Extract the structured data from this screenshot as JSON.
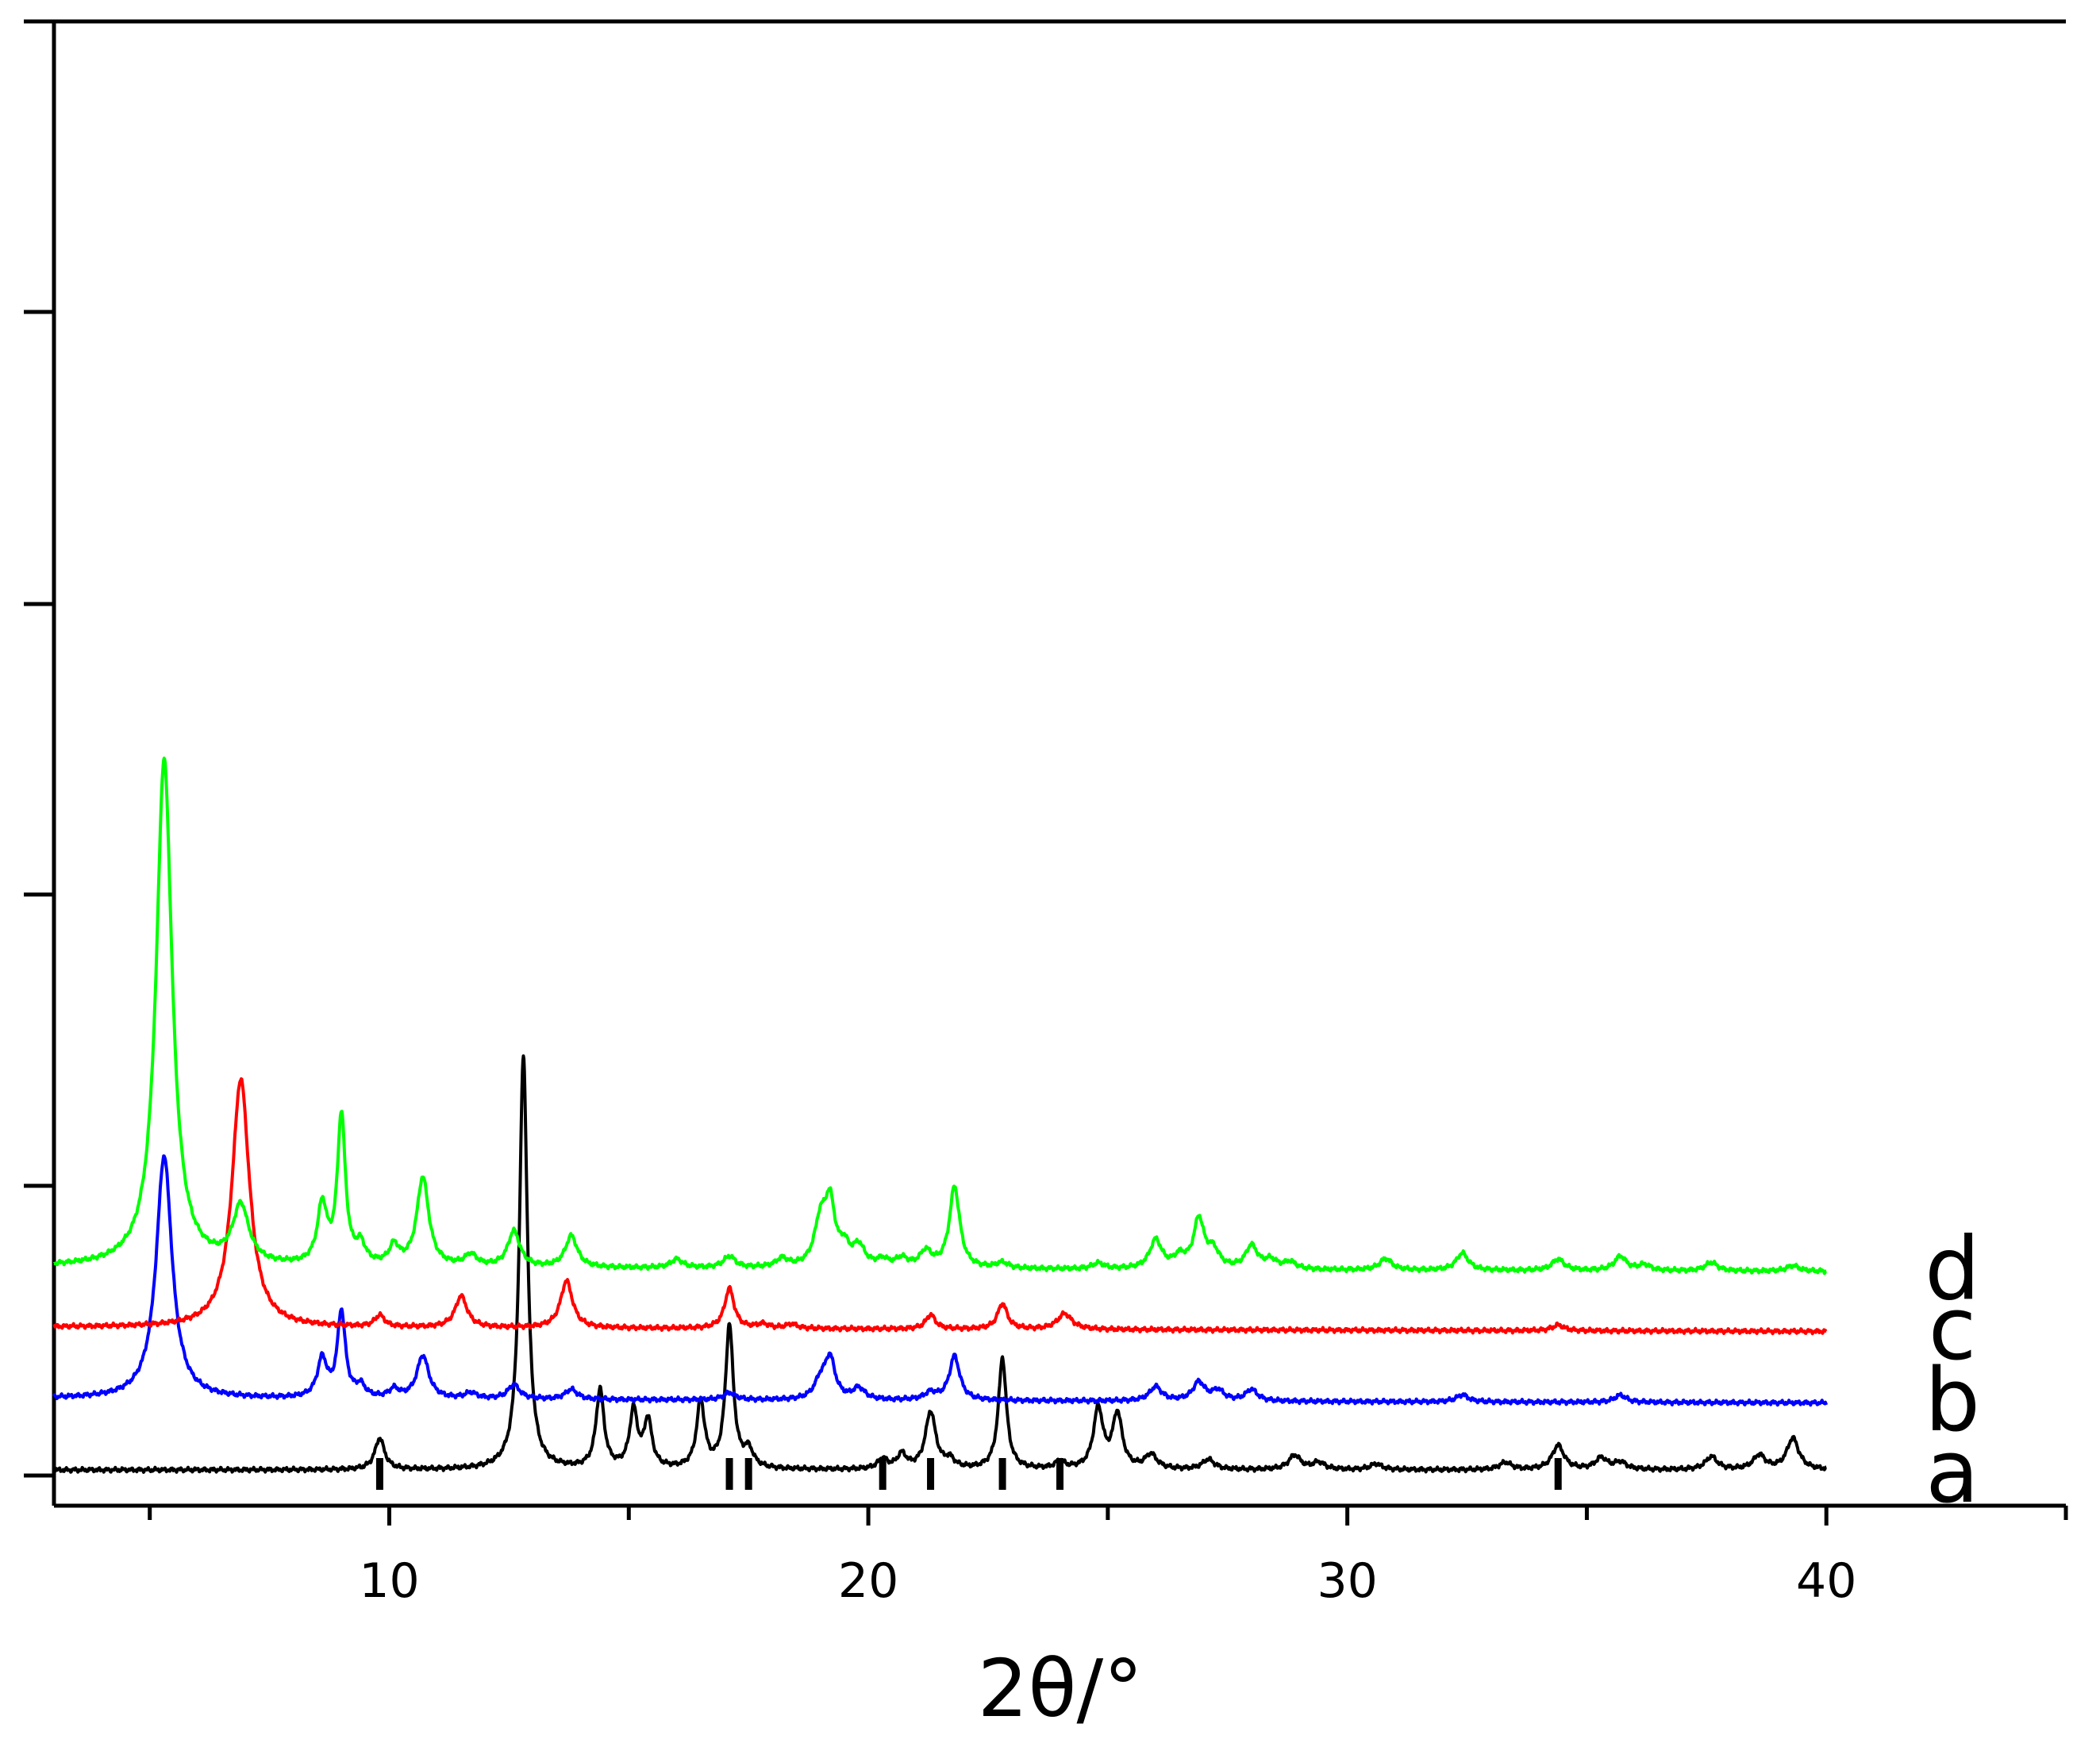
{
  "chart_data": {
    "type": "line",
    "title": "",
    "xlabel": "2θ/°",
    "ylabel": "",
    "xlim": [
      3,
      45
    ],
    "ylim": [
      0,
      5
    ],
    "x_ticks": [
      10,
      20,
      30,
      40
    ],
    "x_tick_labels": [
      "10",
      "20",
      "30",
      "40"
    ],
    "x_minor_ticks": [
      5,
      15,
      25,
      35,
      45
    ],
    "y_ticks": [
      0,
      1,
      2,
      3,
      4,
      5
    ],
    "grid": false,
    "legend": "none",
    "x_range": [
      3,
      40
    ],
    "series": [
      {
        "name": "a",
        "color": "#000000",
        "baseline": 0,
        "peaks": [
          {
            "x": 9.8,
            "h": 0.22,
            "w": 0.12
          },
          {
            "x": 12.8,
            "h": 2.9,
            "w": 0.1
          },
          {
            "x": 14.4,
            "h": 0.55,
            "w": 0.1
          },
          {
            "x": 15.1,
            "h": 0.4,
            "w": 0.1
          },
          {
            "x": 15.4,
            "h": 0.33,
            "w": 0.1
          },
          {
            "x": 16.5,
            "h": 0.47,
            "w": 0.1
          },
          {
            "x": 17.1,
            "h": 1.0,
            "w": 0.1
          },
          {
            "x": 17.5,
            "h": 0.12,
            "w": 0.12
          },
          {
            "x": 20.3,
            "h": 0.07,
            "w": 0.12
          },
          {
            "x": 20.7,
            "h": 0.1,
            "w": 0.12
          },
          {
            "x": 21.3,
            "h": 0.4,
            "w": 0.13
          },
          {
            "x": 21.7,
            "h": 0.06,
            "w": 0.12
          },
          {
            "x": 22.8,
            "h": 0.78,
            "w": 0.1
          },
          {
            "x": 24.0,
            "h": 0.05,
            "w": 0.12
          },
          {
            "x": 24.8,
            "h": 0.42,
            "w": 0.12
          },
          {
            "x": 25.2,
            "h": 0.38,
            "w": 0.12
          },
          {
            "x": 25.9,
            "h": 0.1,
            "w": 0.15
          },
          {
            "x": 27.1,
            "h": 0.07,
            "w": 0.15
          },
          {
            "x": 28.9,
            "h": 0.1,
            "w": 0.15
          },
          {
            "x": 29.4,
            "h": 0.05,
            "w": 0.15
          },
          {
            "x": 30.6,
            "h": 0.04,
            "w": 0.15
          },
          {
            "x": 33.3,
            "h": 0.05,
            "w": 0.15
          },
          {
            "x": 34.4,
            "h": 0.17,
            "w": 0.15
          },
          {
            "x": 35.3,
            "h": 0.08,
            "w": 0.15
          },
          {
            "x": 35.7,
            "h": 0.05,
            "w": 0.15
          },
          {
            "x": 37.6,
            "h": 0.09,
            "w": 0.15
          },
          {
            "x": 38.6,
            "h": 0.1,
            "w": 0.15
          },
          {
            "x": 39.3,
            "h": 0.22,
            "w": 0.15
          }
        ]
      },
      {
        "name": "b",
        "color": "#0000ff",
        "baseline": 0.5,
        "peaks": [
          {
            "x": 5.3,
            "h": 1.7,
            "w": 0.2
          },
          {
            "x": 8.6,
            "h": 0.27,
            "w": 0.12
          },
          {
            "x": 9.0,
            "h": 0.6,
            "w": 0.1
          },
          {
            "x": 9.4,
            "h": 0.08,
            "w": 0.12
          },
          {
            "x": 10.1,
            "h": 0.06,
            "w": 0.12
          },
          {
            "x": 10.7,
            "h": 0.3,
            "w": 0.15
          },
          {
            "x": 11.7,
            "h": 0.04,
            "w": 0.15
          },
          {
            "x": 12.6,
            "h": 0.1,
            "w": 0.15
          },
          {
            "x": 13.8,
            "h": 0.07,
            "w": 0.15
          },
          {
            "x": 17.1,
            "h": 0.05,
            "w": 0.15
          },
          {
            "x": 19.0,
            "h": 0.12,
            "w": 0.15
          },
          {
            "x": 19.2,
            "h": 0.28,
            "w": 0.13
          },
          {
            "x": 19.8,
            "h": 0.08,
            "w": 0.15
          },
          {
            "x": 21.3,
            "h": 0.05,
            "w": 0.15
          },
          {
            "x": 21.8,
            "h": 0.31,
            "w": 0.13
          },
          {
            "x": 26.0,
            "h": 0.1,
            "w": 0.15
          },
          {
            "x": 26.9,
            "h": 0.13,
            "w": 0.15
          },
          {
            "x": 27.3,
            "h": 0.07,
            "w": 0.15
          },
          {
            "x": 28.0,
            "h": 0.08,
            "w": 0.15
          },
          {
            "x": 32.4,
            "h": 0.05,
            "w": 0.15
          },
          {
            "x": 35.7,
            "h": 0.05,
            "w": 0.15
          }
        ]
      },
      {
        "name": "c",
        "color": "#ff0000",
        "baseline": 1.0,
        "peaks": [
          {
            "x": 6.9,
            "h": 1.74,
            "w": 0.22
          },
          {
            "x": 9.8,
            "h": 0.08,
            "w": 0.12
          },
          {
            "x": 11.5,
            "h": 0.22,
            "w": 0.15
          },
          {
            "x": 13.7,
            "h": 0.33,
            "w": 0.15
          },
          {
            "x": 17.1,
            "h": 0.28,
            "w": 0.12
          },
          {
            "x": 17.8,
            "h": 0.03,
            "w": 0.15
          },
          {
            "x": 18.4,
            "h": 0.03,
            "w": 0.15
          },
          {
            "x": 21.3,
            "h": 0.1,
            "w": 0.12
          },
          {
            "x": 22.8,
            "h": 0.18,
            "w": 0.12
          },
          {
            "x": 24.1,
            "h": 0.11,
            "w": 0.18
          },
          {
            "x": 34.4,
            "h": 0.04,
            "w": 0.15
          }
        ]
      },
      {
        "name": "d",
        "color": "#00ff00",
        "baseline": 1.42,
        "peaks": [
          {
            "x": 5.3,
            "h": 3.55,
            "w": 0.2
          },
          {
            "x": 6.9,
            "h": 0.4,
            "w": 0.2
          },
          {
            "x": 8.6,
            "h": 0.41,
            "w": 0.12
          },
          {
            "x": 9.0,
            "h": 1.04,
            "w": 0.1
          },
          {
            "x": 9.4,
            "h": 0.13,
            "w": 0.12
          },
          {
            "x": 10.1,
            "h": 0.13,
            "w": 0.12
          },
          {
            "x": 10.7,
            "h": 0.62,
            "w": 0.15
          },
          {
            "x": 11.7,
            "h": 0.08,
            "w": 0.15
          },
          {
            "x": 12.6,
            "h": 0.25,
            "w": 0.15
          },
          {
            "x": 13.8,
            "h": 0.22,
            "w": 0.15
          },
          {
            "x": 16.0,
            "h": 0.06,
            "w": 0.15
          },
          {
            "x": 17.1,
            "h": 0.08,
            "w": 0.15
          },
          {
            "x": 18.2,
            "h": 0.06,
            "w": 0.15
          },
          {
            "x": 19.0,
            "h": 0.3,
            "w": 0.15
          },
          {
            "x": 19.2,
            "h": 0.42,
            "w": 0.13
          },
          {
            "x": 19.5,
            "h": 0.12,
            "w": 0.12
          },
          {
            "x": 19.8,
            "h": 0.14,
            "w": 0.15
          },
          {
            "x": 20.3,
            "h": 0.05,
            "w": 0.15
          },
          {
            "x": 20.7,
            "h": 0.06,
            "w": 0.15
          },
          {
            "x": 21.2,
            "h": 0.11,
            "w": 0.15
          },
          {
            "x": 21.8,
            "h": 0.57,
            "w": 0.13
          },
          {
            "x": 22.8,
            "h": 0.04,
            "w": 0.15
          },
          {
            "x": 24.8,
            "h": 0.04,
            "w": 0.15
          },
          {
            "x": 26.0,
            "h": 0.2,
            "w": 0.15
          },
          {
            "x": 26.5,
            "h": 0.08,
            "w": 0.15
          },
          {
            "x": 26.9,
            "h": 0.34,
            "w": 0.13
          },
          {
            "x": 27.2,
            "h": 0.12,
            "w": 0.15
          },
          {
            "x": 28.0,
            "h": 0.16,
            "w": 0.15
          },
          {
            "x": 28.4,
            "h": 0.06,
            "w": 0.15
          },
          {
            "x": 28.8,
            "h": 0.05,
            "w": 0.15
          },
          {
            "x": 30.8,
            "h": 0.08,
            "w": 0.15
          },
          {
            "x": 32.4,
            "h": 0.12,
            "w": 0.15
          },
          {
            "x": 34.4,
            "h": 0.08,
            "w": 0.15
          },
          {
            "x": 35.7,
            "h": 0.1,
            "w": 0.15
          },
          {
            "x": 36.2,
            "h": 0.04,
            "w": 0.15
          },
          {
            "x": 37.6,
            "h": 0.06,
            "w": 0.15
          },
          {
            "x": 39.3,
            "h": 0.04,
            "w": 0.15
          }
        ]
      }
    ],
    "reference_markers": {
      "color": "#000000",
      "x": [
        9.8,
        17.1,
        17.5,
        20.3,
        21.3,
        22.8,
        24.0,
        34.4
      ]
    }
  }
}
